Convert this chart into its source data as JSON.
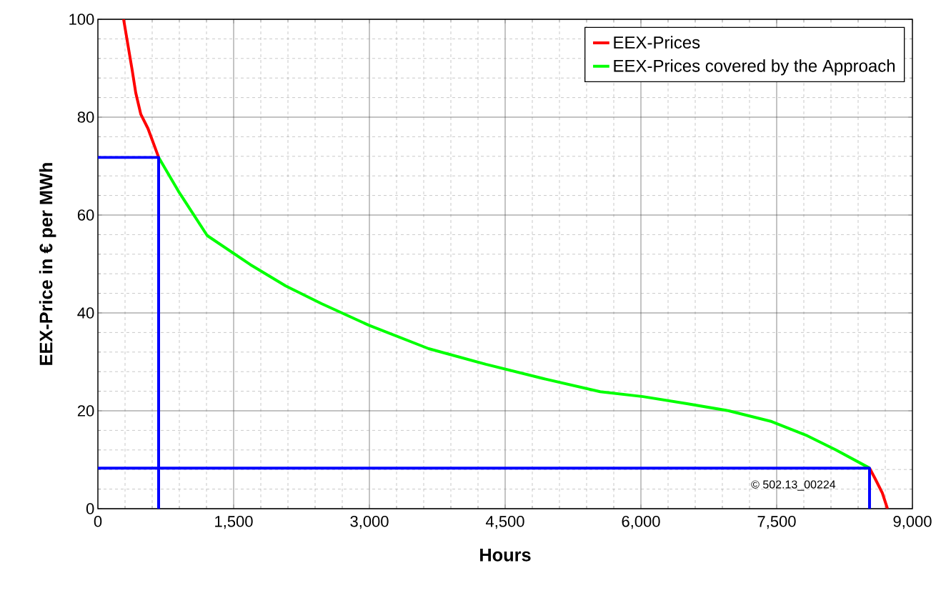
{
  "chart_data": {
    "type": "line",
    "xlabel": "Hours",
    "ylabel": "EEX-Price in € per MWh",
    "xlim": [
      0,
      9000
    ],
    "ylim": [
      0,
      100
    ],
    "xticks": [
      0,
      {
        "value": 1500,
        "label": "1,500"
      },
      {
        "value": 3000,
        "label": "3,000"
      },
      {
        "value": 4500,
        "label": "4,500"
      },
      {
        "value": 6000,
        "label": "6,000"
      },
      {
        "value": 7500,
        "label": "7,500"
      },
      {
        "value": 9000,
        "label": "9,000"
      }
    ],
    "yticks": [
      0,
      20,
      40,
      60,
      80,
      100
    ],
    "grid": true,
    "legend": "top right",
    "annotations": [
      "© 502.13_00224"
    ],
    "series": [
      {
        "name": "EEX-Prices",
        "color": "#ff0000",
        "x": [
          284,
          379,
          418,
          474,
          553,
          671,
          5000,
          8526,
          8589,
          8668,
          8724
        ],
        "values": [
          100,
          89.6,
          85,
          80.6,
          77.7,
          71.8,
          null,
          8.3,
          6.1,
          3.2,
          0
        ]
      },
      {
        "name": "EEX-Prices covered by the Approach",
        "color": "#00ff00",
        "x": [
          671,
          892,
          1208,
          1682,
          2076,
          2471,
          2992,
          3655,
          4287,
          4918,
          5550,
          6024,
          6497,
          6971,
          7445,
          7839,
          8155,
          8526
        ],
        "values": [
          71.8,
          64.8,
          55.8,
          49.9,
          45.5,
          41.9,
          37.5,
          32.7,
          29.5,
          26.6,
          23.9,
          22.9,
          21.5,
          20.0,
          17.8,
          14.9,
          12.0,
          8.3
        ]
      },
      {
        "color": "#0000ff",
        "x": [
          0,
          671,
          671
        ],
        "values": [
          71.8,
          71.8,
          0
        ]
      },
      {
        "color": "#0000ff",
        "x": [
          0,
          8526,
          8526
        ],
        "values": [
          8.3,
          8.3,
          0
        ]
      }
    ]
  }
}
